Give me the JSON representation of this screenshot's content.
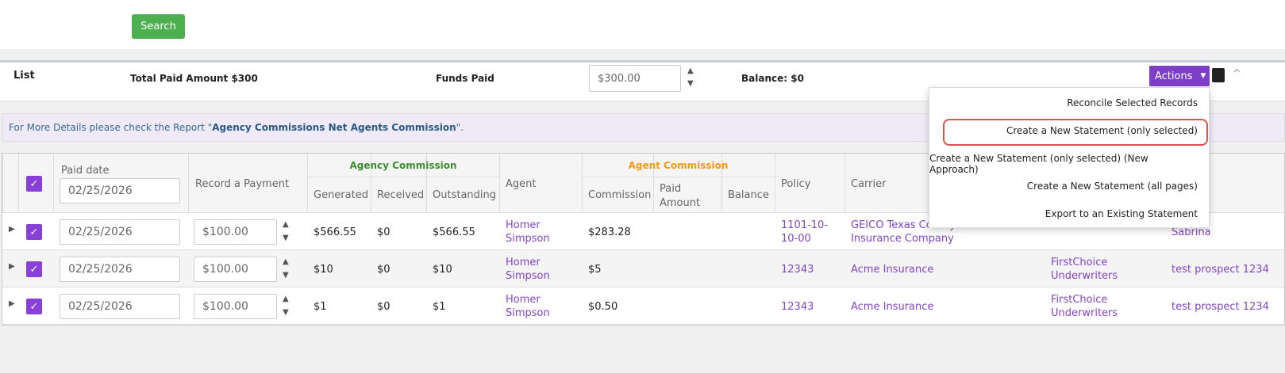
{
  "search_button": "Search",
  "list": {
    "title": "List",
    "total_paid": "Total Paid Amount $300",
    "funds_paid_label": "Funds Paid",
    "funds_paid_value": "$300.00",
    "balance": "Balance: $0",
    "actions_button": "Actions"
  },
  "actions_menu": [
    "Reconcile Selected Records",
    "Create a New Statement (only selected)",
    "Create a New Statement (only selected) (New Approach)",
    "Create a New Statement (all pages)",
    "Export to an Existing Statement"
  ],
  "notice": {
    "text": "For More Details please check the Report \"",
    "link": "Agency Commissions Net Agents Commission",
    "suffix": "\"."
  },
  "table": {
    "group_headers": {
      "agency": "Agency Commission",
      "agent": "Agent Commission"
    },
    "headers": {
      "paid_date": "Paid date",
      "paid_date_value": "02/25/2026",
      "record_payment": "Record a Payment",
      "generated": "Generated",
      "received": "Received",
      "outstanding": "Outstanding",
      "agent": "Agent",
      "commission": "Commission",
      "paid_amount": "Paid Amount",
      "balance": "Balance",
      "policy": "Policy",
      "carrier": "Carrier"
    },
    "rows": [
      {
        "paid_date": "02/25/2026",
        "payment": "$100.00",
        "generated": "$566.55",
        "received": "$0",
        "outstanding": "$566.55",
        "agent": "Homer Simpson",
        "commission": "$283.28",
        "policy": "1101-10-10-00",
        "carrier": "GEICO Texas County Mutual Insurance Company",
        "underwriter": null,
        "contact": "Sabrina"
      },
      {
        "paid_date": "02/25/2026",
        "payment": "$100.00",
        "generated": "$10",
        "received": "$0",
        "outstanding": "$10",
        "agent": "Homer Simpson",
        "commission": "$5",
        "policy": "12343",
        "carrier": "Acme Insurance",
        "underwriter": "FirstChoice Underwriters",
        "contact": "test prospect 1234"
      },
      {
        "paid_date": "02/25/2026",
        "payment": "$100.00",
        "generated": "$1",
        "received": "$0",
        "outstanding": "$1",
        "agent": "Homer Simpson",
        "commission": "$0.50",
        "policy": "12343",
        "carrier": "Acme Insurance",
        "underwriter": "FirstChoice Underwriters",
        "contact": "test prospect 1234"
      }
    ]
  }
}
